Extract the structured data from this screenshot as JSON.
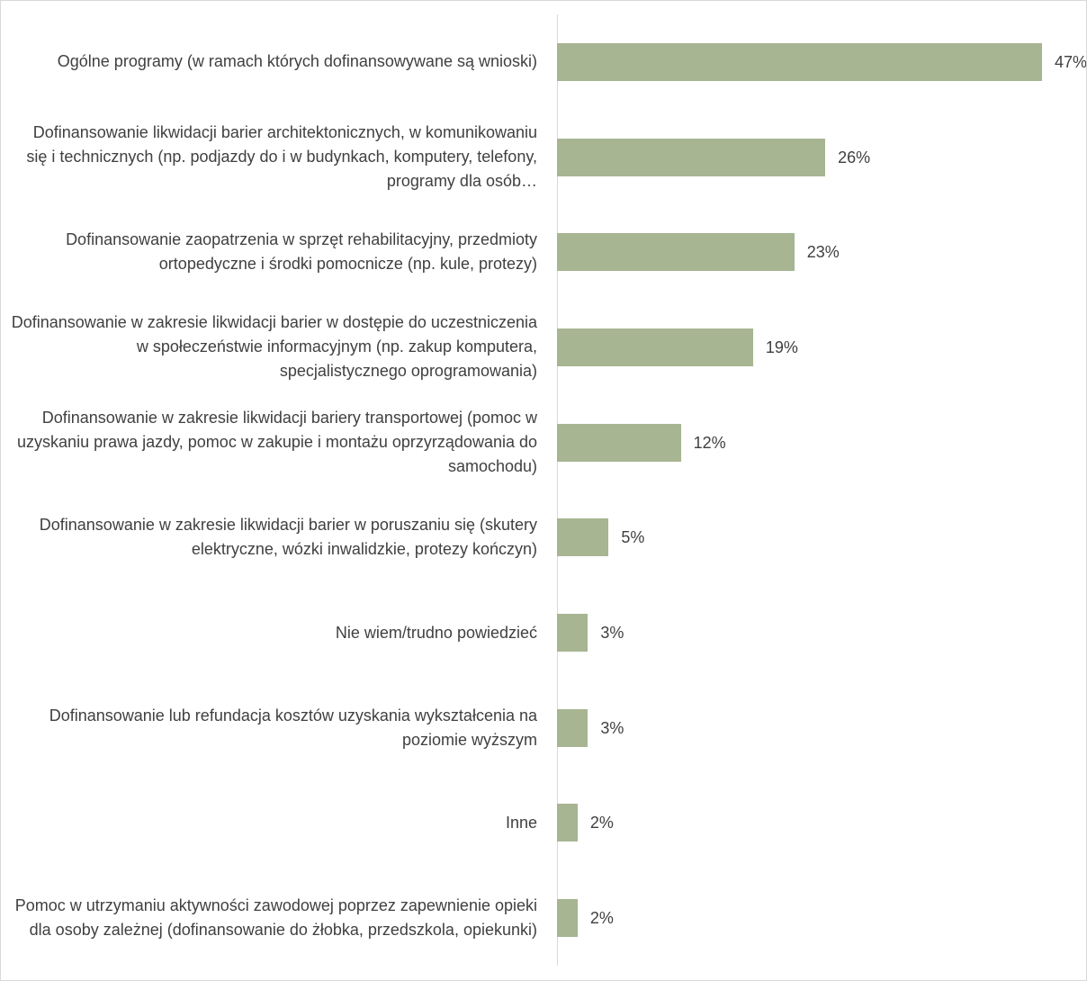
{
  "chart_data": {
    "type": "bar",
    "orientation": "horizontal",
    "categories": [
      "Ogólne programy (w ramach których dofinansowywane są wnioski)",
      "Dofinansowanie likwidacji barier architektonicznych, w komunikowaniu się i technicznych (np. podjazdy do i w budynkach, komputery, telefony, programy dla osób…",
      "Dofinansowanie zaopatrzenia w sprzęt rehabilitacyjny, przedmioty ortopedyczne i środki pomocnicze (np. kule, protezy)",
      "Dofinansowanie w zakresie likwidacji barier w dostępie do uczestniczenia  w społeczeństwie informacyjnym (np. zakup komputera, specjalistycznego oprogramowania)",
      "Dofinansowanie w zakresie  likwidacji bariery transportowej (pomoc w uzyskaniu prawa jazdy, pomoc w zakupie i montażu oprzyrządowania do samochodu)",
      "Dofinansowanie w zakresie likwidacji barier w poruszaniu się (skutery elektryczne, wózki inwalidzkie, protezy kończyn)",
      "Nie wiem/trudno powiedzieć",
      "Dofinansowanie lub refundacja kosztów uzyskania wykształcenia na poziomie wyższym",
      "Inne",
      "Pomoc w utrzymaniu aktywności zawodowej poprzez zapewnienie opieki dla osoby zależnej (dofinansowanie do żłobka, przedszkola, opiekunki)"
    ],
    "values": [
      47,
      26,
      23,
      19,
      12,
      5,
      3,
      3,
      2,
      2
    ],
    "value_labels": [
      "47%",
      "26%",
      "23%",
      "19%",
      "12%",
      "5%",
      "3%",
      "3%",
      "2%",
      "2%"
    ],
    "color": "#a7b592"
  }
}
